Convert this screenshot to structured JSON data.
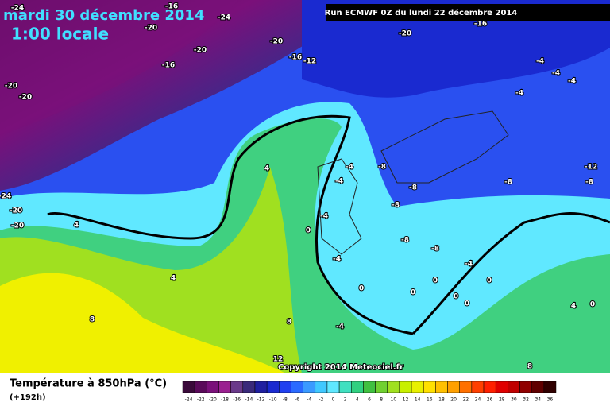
{
  "header": {
    "date": "mardi 30 décembre 2014",
    "time": "1:00 locale",
    "run": "Run ECMWF 0Z du lundi 22 décembre 2014",
    "copyright": "Copyright 2014 Meteociel.fr"
  },
  "legend": {
    "title": "Température à 850hPa (°C)",
    "lead": "(+192h)",
    "ticks": [
      -24,
      -22,
      -20,
      -18,
      -16,
      -14,
      -12,
      -10,
      -8,
      -6,
      -4,
      -2,
      0,
      2,
      4,
      6,
      8,
      10,
      12,
      14,
      16,
      18,
      20,
      22,
      24,
      26,
      28,
      30,
      32,
      34,
      36
    ],
    "colors": [
      "#3a0a3a",
      "#5a0a5a",
      "#7a107a",
      "#9a2090",
      "#6a3a8a",
      "#3a2a7a",
      "#2020a0",
      "#1a2ad0",
      "#2040f0",
      "#2a6aff",
      "#3a9aff",
      "#40c8ff",
      "#60e8ff",
      "#40e0c0",
      "#30d080",
      "#40c040",
      "#70d030",
      "#a0e020",
      "#c8f000",
      "#e8f000",
      "#ffe000",
      "#ffc000",
      "#ffa000",
      "#ff7000",
      "#ff4000",
      "#ff2000",
      "#e00000",
      "#c00000",
      "#900000",
      "#600000",
      "#300000"
    ]
  },
  "contour_labels": [
    -24,
    -16,
    -24,
    -20,
    -16,
    -20,
    -20,
    -20,
    -16,
    -16,
    -12,
    -20,
    -20,
    -4,
    -4,
    -4,
    -4,
    -4,
    -8,
    -12,
    -8,
    -8,
    -8,
    -24,
    -20,
    -20,
    4,
    4,
    0,
    -4,
    -4,
    -8,
    -8,
    -8,
    -4,
    -4,
    4,
    0,
    0,
    0,
    0,
    0,
    0,
    8,
    8,
    -4,
    4,
    0,
    12,
    8
  ]
}
